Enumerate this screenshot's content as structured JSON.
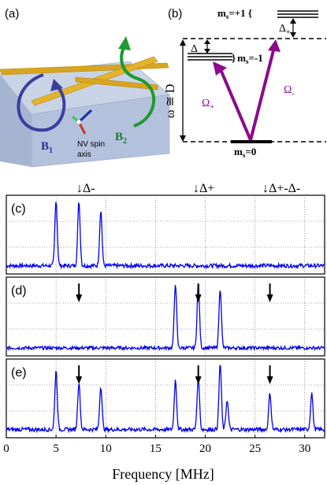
{
  "panel_labels": {
    "a": "(a)",
    "b": "(b)",
    "c": "(c)",
    "d": "(d)",
    "e": "(e)"
  },
  "schematic": {
    "b1_label": "B",
    "b1_sub": "1",
    "b2_label": "B",
    "b2_sub": "2",
    "nv_label_line1": "NV spin",
    "nv_label_line2": "axis"
  },
  "level_diagram": {
    "ms_plus1": "m",
    "ms_plus1_sub": "s",
    "ms_plus1_val": "=+1 {",
    "ms_minus1": "m",
    "ms_minus1_sub": "s",
    "ms_minus1_val": "=-1",
    "ms_minus1_brace": "}",
    "ms_zero": "m",
    "ms_zero_sub": "s",
    "ms_zero_val": "=0",
    "delta_plus": "Δ",
    "delta_plus_sub": "+",
    "delta_minus": "Δ",
    "delta_minus_sub": "-",
    "omega_approx": "ω ≅ D",
    "omega_plus": "Ω",
    "omega_plus_sub": "+",
    "omega_minus": "Ω",
    "omega_minus_sub": "-",
    "colors": {
      "transition": "#8B0A8B",
      "level": "#000000"
    }
  },
  "markers": {
    "delta_minus": "↓Δ-",
    "delta_plus": "↓Δ+",
    "delta_diff": "↓Δ+-Δ-"
  },
  "chart_data": {
    "type": "line",
    "xlabel": "Frequency [MHz]",
    "xlim": [
      0,
      32
    ],
    "x_ticks": [
      0,
      5,
      10,
      15,
      20,
      25,
      30
    ],
    "grid": true,
    "line_color": "#0000ee",
    "marker_positions_mhz": {
      "delta_minus": 7.3,
      "delta_plus": 19.3,
      "delta_diff": 26.5
    },
    "panels": [
      {
        "label": "(c)",
        "peaks": [
          {
            "x": 5.0,
            "height": 1.0
          },
          {
            "x": 7.3,
            "height": 0.97
          },
          {
            "x": 9.5,
            "height": 0.84
          }
        ],
        "noise": 0.06
      },
      {
        "label": "(d)",
        "peaks": [
          {
            "x": 17.0,
            "height": 0.98
          },
          {
            "x": 19.3,
            "height": 0.97
          },
          {
            "x": 21.5,
            "height": 0.9
          }
        ],
        "noise": 0.05
      },
      {
        "label": "(e)",
        "peaks": [
          {
            "x": 5.0,
            "height": 0.9
          },
          {
            "x": 7.3,
            "height": 0.72
          },
          {
            "x": 9.5,
            "height": 0.66
          },
          {
            "x": 17.0,
            "height": 0.75
          },
          {
            "x": 19.3,
            "height": 0.8
          },
          {
            "x": 21.5,
            "height": 1.0
          },
          {
            "x": 22.2,
            "height": 0.45
          },
          {
            "x": 26.5,
            "height": 0.55
          },
          {
            "x": 30.7,
            "height": 0.55
          }
        ],
        "noise": 0.06
      }
    ]
  }
}
